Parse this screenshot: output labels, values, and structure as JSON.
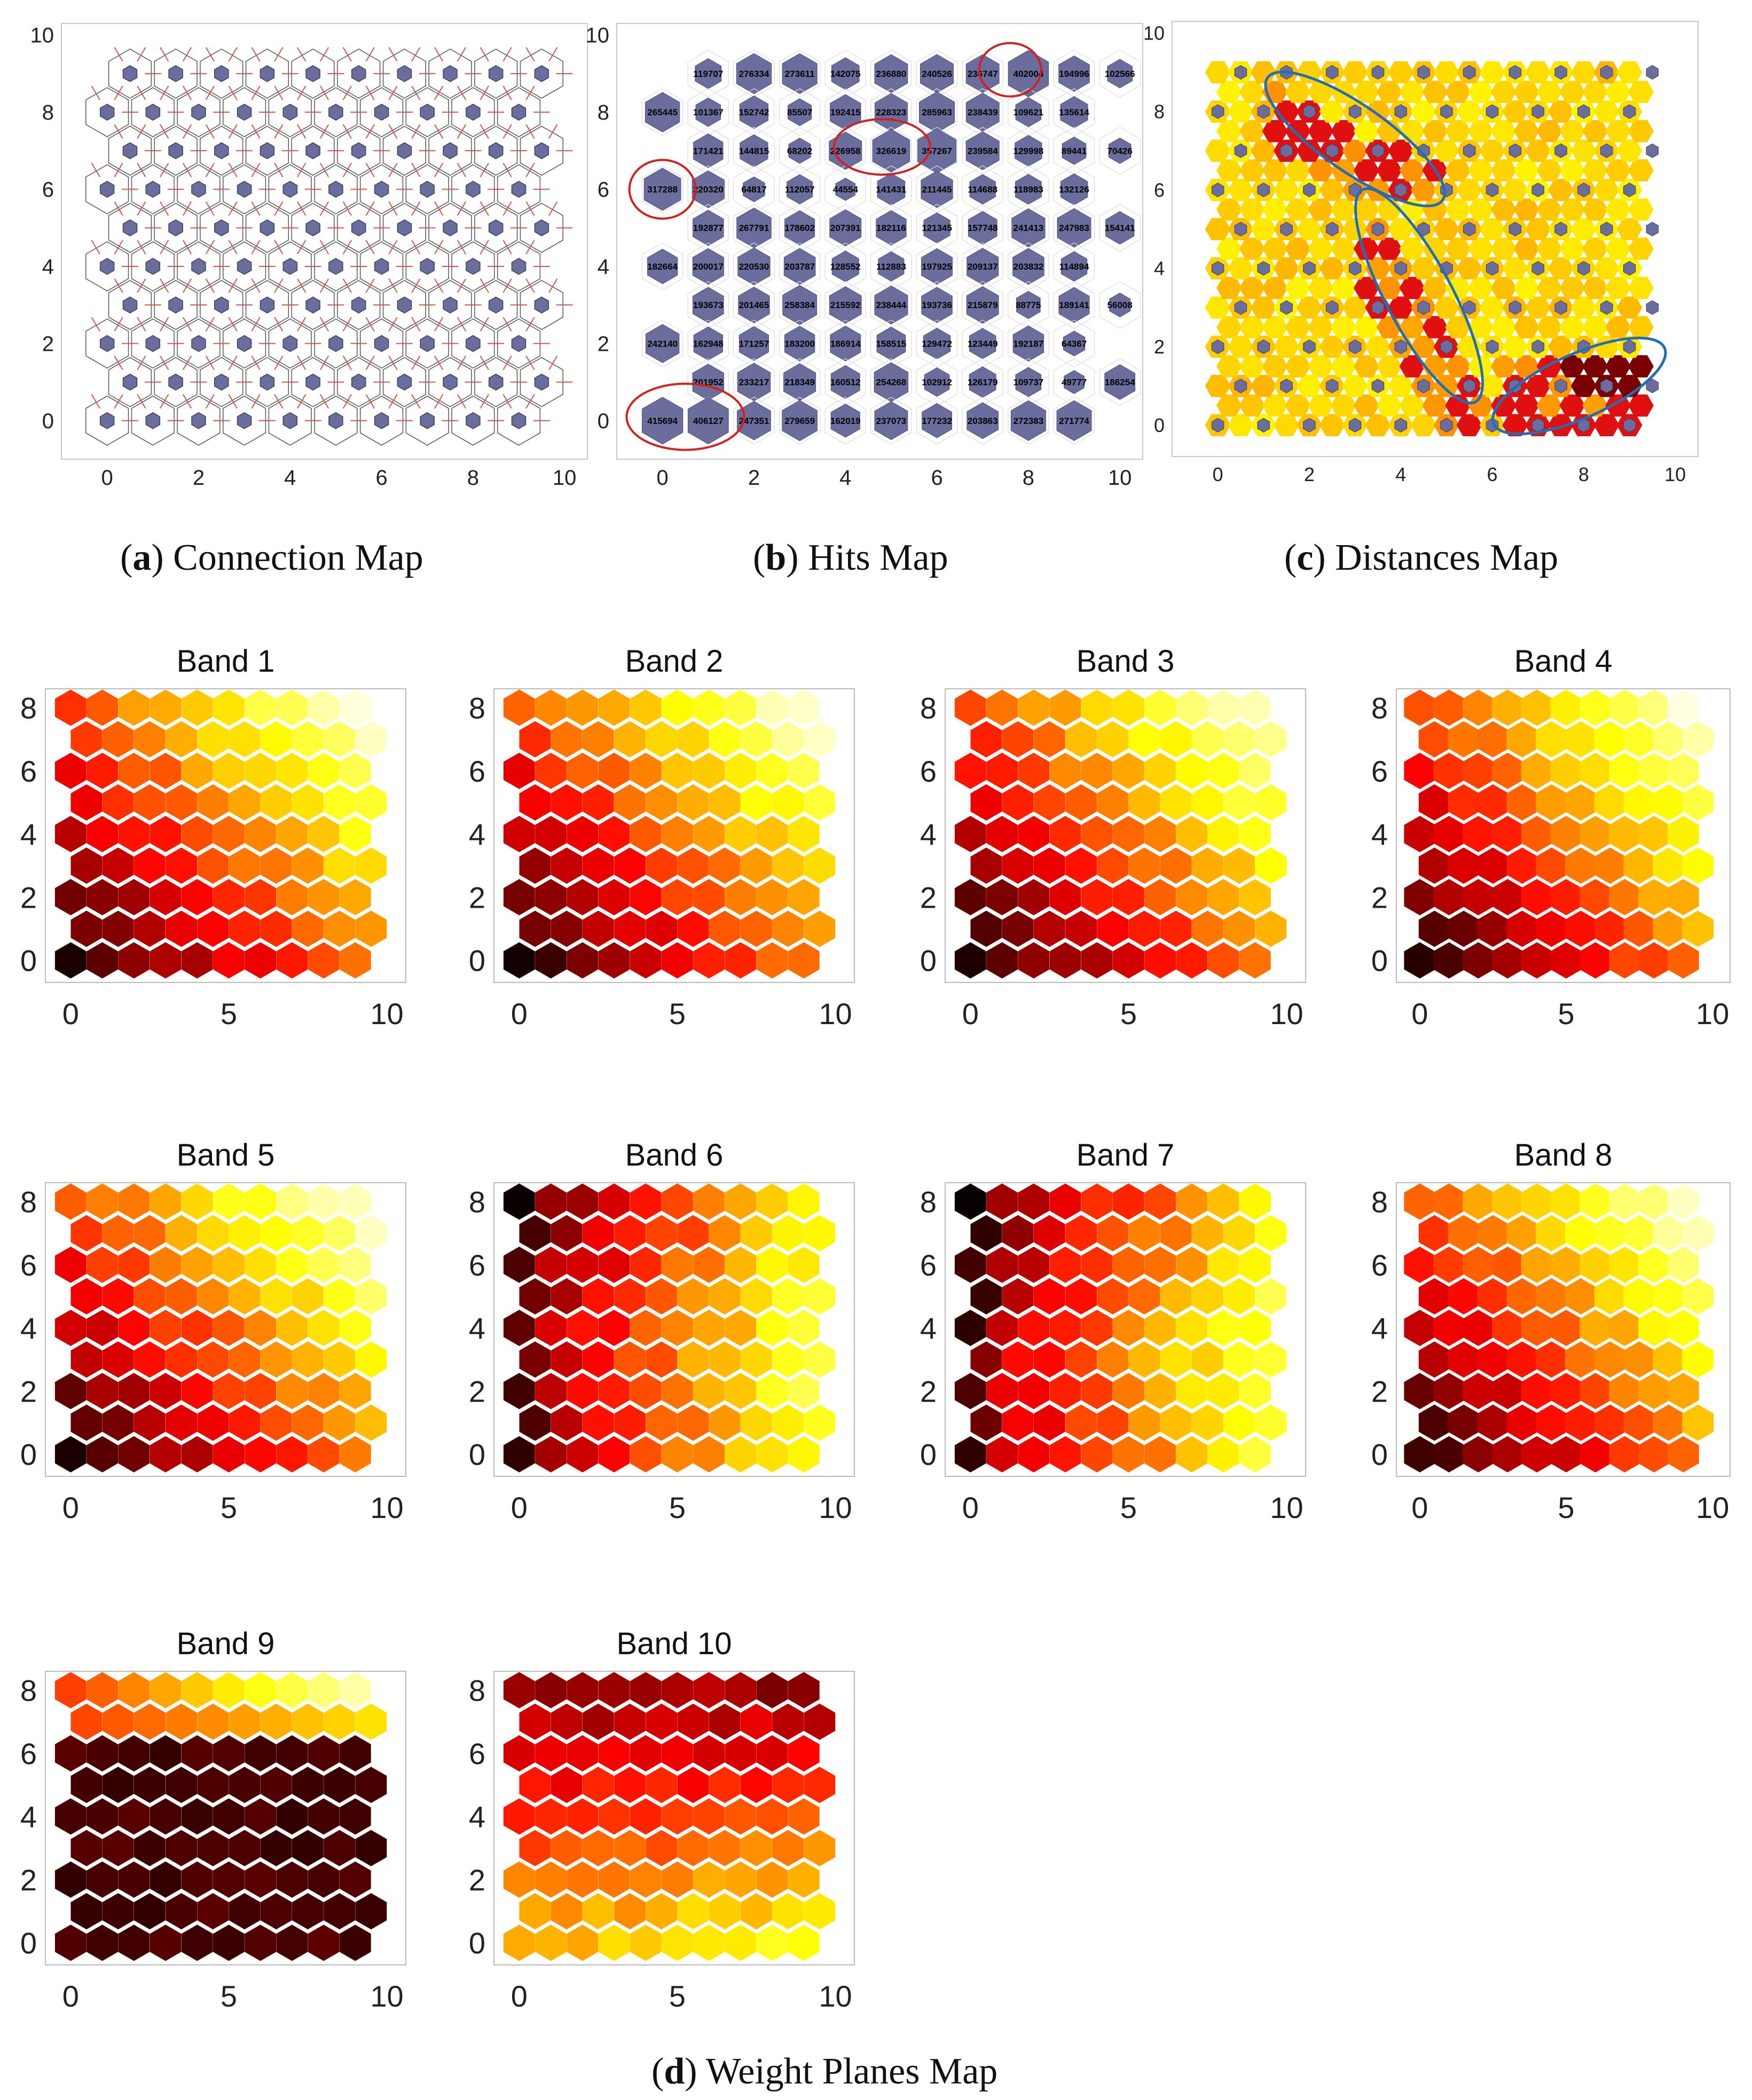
{
  "captions": {
    "a": {
      "letter": "a",
      "text": "Connection Map"
    },
    "b": {
      "letter": "b",
      "text": "Hits Map"
    },
    "c": {
      "letter": "c",
      "text": "Distances Map"
    },
    "d": {
      "letter": "d",
      "text": "Weight Planes Map"
    }
  },
  "colors": {
    "node": "#6b6d9c",
    "neighbor_line": "#d9534f",
    "highlight_red": "#d62020",
    "highlight_blue": "#1f6fb5"
  },
  "chart_data": [
    {
      "id": "connection",
      "type": "scatter",
      "title": "",
      "grid": "hexagonal 10x10 SOM topology, neurons shown as small hexagons linked to neighbours",
      "xlim": [
        -1,
        10.5
      ],
      "ylim": [
        -1,
        10.3
      ],
      "xticks": [
        0,
        2,
        4,
        6,
        8,
        10
      ],
      "yticks": [
        0,
        2,
        4,
        6,
        8,
        10
      ]
    },
    {
      "id": "hits",
      "type": "heatmap",
      "title": "",
      "xlim": [
        -1,
        10.5
      ],
      "ylim": [
        -1,
        10.3
      ],
      "xticks": [
        0,
        2,
        4,
        6,
        8,
        10
      ],
      "yticks": [
        0,
        2,
        4,
        6,
        8,
        10
      ],
      "hits_rows_top_to_bottom": [
        [
          "119707",
          "276334",
          "273611",
          "142075",
          "236880",
          "240526",
          "236747",
          "402004",
          "194996",
          "102566"
        ],
        [
          "265445",
          "101367",
          "152742",
          "85507",
          "192415",
          "228323",
          "285963",
          "238439",
          "109621",
          "135614"
        ],
        [
          "171421",
          "144815",
          "68202",
          "226958",
          "326619",
          "357267",
          "239584",
          "129998",
          "89441",
          "70426"
        ],
        [
          "317288",
          "220320",
          "64817",
          "112057",
          "44554",
          "141431",
          "211445",
          "114688",
          "118983",
          "132126"
        ],
        [
          "192877",
          "267791",
          "178602",
          "207391",
          "182116",
          "121345",
          "157748",
          "241413",
          "247983",
          "154141"
        ],
        [
          "182664",
          "200017",
          "220530",
          "203787",
          "128552",
          "112883",
          "197925",
          "209137",
          "203832",
          "114894"
        ],
        [
          "193673",
          "201465",
          "258384",
          "215592",
          "238444",
          "193736",
          "215879",
          "88775",
          "189141",
          "56008"
        ],
        [
          "242140",
          "162948",
          "171257",
          "183200",
          "186914",
          "158515",
          "129472",
          "123449",
          "192187",
          "64367"
        ],
        [
          "201952",
          "233217",
          "218349",
          "160512",
          "254268",
          "102912",
          "126179",
          "109737",
          "49777",
          "186254"
        ],
        [
          "415694",
          "406127",
          "247351",
          "279659",
          "162019",
          "237073",
          "177232",
          "203863",
          "272383",
          "271774"
        ]
      ],
      "highlighted_counts": [
        "402004",
        "326619",
        "357267",
        "317288",
        "415694",
        "406127"
      ]
    },
    {
      "id": "distances",
      "type": "heatmap",
      "title": "",
      "xlim": [
        -1,
        10.5
      ],
      "ylim": [
        -0.8,
        10.3
      ],
      "xticks": [
        0,
        2,
        4,
        6,
        8,
        10
      ],
      "yticks": [
        0,
        2,
        4,
        6,
        8,
        10
      ],
      "highlighted_regions": 3
    },
    {
      "id": "band1",
      "type": "heatmap",
      "title": "Band 1",
      "xticks": [
        0,
        5,
        10
      ],
      "yticks": [
        0,
        2,
        4,
        6,
        8
      ],
      "pattern": "diagonal"
    },
    {
      "id": "band2",
      "type": "heatmap",
      "title": "Band 2",
      "xticks": [
        0,
        5,
        10
      ],
      "yticks": [
        0,
        2,
        4,
        6,
        8
      ],
      "pattern": "diagonal"
    },
    {
      "id": "band3",
      "type": "heatmap",
      "title": "Band 3",
      "xticks": [
        0,
        5,
        10
      ],
      "yticks": [
        0,
        2,
        4,
        6,
        8
      ],
      "pattern": "diagonal"
    },
    {
      "id": "band4",
      "type": "heatmap",
      "title": "Band 4",
      "xticks": [
        0,
        5,
        10
      ],
      "yticks": [
        0,
        2,
        4,
        6,
        8
      ],
      "pattern": "diagonal"
    },
    {
      "id": "band5",
      "type": "heatmap",
      "title": "Band 5",
      "xticks": [
        0,
        5,
        10
      ],
      "yticks": [
        0,
        2,
        4,
        6,
        8
      ],
      "pattern": "diagonal"
    },
    {
      "id": "band6",
      "type": "heatmap",
      "title": "Band 6",
      "xticks": [
        0,
        5,
        10
      ],
      "yticks": [
        0,
        2,
        4,
        6,
        8
      ],
      "pattern": "right_bright"
    },
    {
      "id": "band7",
      "type": "heatmap",
      "title": "Band 7",
      "xticks": [
        0,
        5,
        10
      ],
      "yticks": [
        0,
        2,
        4,
        6,
        8
      ],
      "pattern": "right_bright"
    },
    {
      "id": "band8",
      "type": "heatmap",
      "title": "Band 8",
      "xticks": [
        0,
        5,
        10
      ],
      "yticks": [
        0,
        2,
        4,
        6,
        8
      ],
      "pattern": "diagonal"
    },
    {
      "id": "band9",
      "type": "heatmap",
      "title": "Band 9",
      "xticks": [
        0,
        5,
        10
      ],
      "yticks": [
        0,
        2,
        4,
        6,
        8
      ],
      "pattern": "top_bright"
    },
    {
      "id": "band10",
      "type": "heatmap",
      "title": "Band 10",
      "xticks": [
        0,
        5,
        10
      ],
      "yticks": [
        0,
        2,
        4,
        6,
        8
      ],
      "pattern": "bottom_bright"
    }
  ]
}
